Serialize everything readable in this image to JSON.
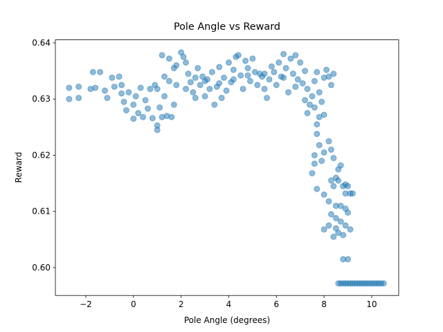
{
  "chart_data": {
    "type": "scatter",
    "title": "Pole Angle vs Reward",
    "x_label": "Pole Angle (degrees)",
    "y_label": "Reward",
    "color": "#1f77b4",
    "alpha": 0.5,
    "grid": false,
    "xlim": [
      -3.278,
      11.133
    ],
    "ylim": [
      0.59505,
      0.64054
    ],
    "xticks": [
      {
        "value": -2,
        "label": "−2"
      },
      0,
      2,
      4,
      6,
      8,
      10
    ],
    "yticks": [
      {
        "value": 0.6,
        "label": "0.60"
      },
      0.61,
      0.62,
      0.63,
      0.64
    ],
    "x": [
      -2.7,
      -2.7,
      -2.3,
      -2.3,
      -1.8,
      -1.7,
      -1.4,
      -1.6,
      -1.2,
      -1.1,
      -0.9,
      -0.8,
      -0.6,
      -0.5,
      -0.5,
      -0.4,
      -0.3,
      -0.2,
      0,
      0,
      0.1,
      0.2,
      0.3,
      0.4,
      0.5,
      0.6,
      0.7,
      0.8,
      0.9,
      1,
      1,
      1.1,
      1.2,
      1.3,
      1.4,
      1.5,
      1.6,
      1.7,
      1.7,
      1.2,
      1.5,
      1.8,
      2.0,
      2.1,
      2.2,
      2.3,
      2.4,
      2.5,
      2.6,
      2.7,
      2.8,
      2.9,
      3.0,
      3.1,
      3.2,
      3.3,
      3.4,
      3.5,
      3.6,
      3.7,
      3.8,
      3.9,
      4.0,
      4.1,
      4.2,
      4.3,
      4.4,
      4.5,
      4.6,
      4.7,
      4.8,
      4.9,
      5.0,
      5.1,
      5.2,
      5.3,
      5.4,
      5.5,
      5.6,
      5.7,
      5.8,
      5.9,
      6.0,
      6.1,
      6.2,
      6.3,
      6.4,
      6.5,
      6.6,
      6.7,
      6.8,
      6.9,
      7.0,
      7.1,
      7.2,
      7.3,
      7.4,
      7.5,
      7.6,
      7.7,
      7.8,
      7.9,
      8.0,
      8.1,
      8.2,
      8.3,
      8.4,
      1.0,
      1.3,
      1.8,
      2.2,
      2.6,
      3.0,
      3.6,
      4.2,
      4.8,
      5.5,
      6.3,
      6.8,
      7.2,
      7.6,
      7.3,
      7.8,
      8.0,
      7.7,
      7.7,
      7.8,
      7.6,
      7.9,
      7.6,
      7.5,
      7.7,
      8.0,
      8.2,
      8.3,
      8.4,
      8.6,
      8.7,
      8.3,
      8.5,
      8.8,
      8.9,
      9.0,
      8.9,
      9.1,
      9.2,
      8.6,
      8.4,
      8.0,
      8.2,
      8.5,
      8.7,
      8.9,
      9.0,
      8.3,
      8.5,
      8.7,
      8.2,
      8.5,
      8.9,
      9.1,
      8.0,
      8.6,
      8.8,
      8.4,
      9.0,
      8.8,
      8.6,
      8.7,
      8.8,
      8.9,
      9.0,
      9.1,
      9.2,
      9.3,
      9.4,
      9.5,
      9.6,
      9.7,
      9.8,
      9.9,
      10.0,
      10.1,
      10.2,
      10.3,
      10.4,
      10.5
    ],
    "y": [
      0.632,
      0.63,
      0.6322,
      0.6302,
      0.6318,
      0.6348,
      0.6348,
      0.632,
      0.6315,
      0.6302,
      0.6338,
      0.6322,
      0.634,
      0.6325,
      0.631,
      0.6295,
      0.628,
      0.6312,
      0.6265,
      0.629,
      0.6305,
      0.6275,
      0.632,
      0.6268,
      0.6298,
      0.6283,
      0.6318,
      0.6266,
      0.6325,
      0.6253,
      0.6245,
      0.6285,
      0.6268,
      0.634,
      0.627,
      0.6332,
      0.6268,
      0.6355,
      0.629,
      0.6378,
      0.6372,
      0.636,
      0.6383,
      0.6375,
      0.6365,
      0.6345,
      0.633,
      0.6312,
      0.6302,
      0.6355,
      0.6325,
      0.634,
      0.6305,
      0.6335,
      0.6318,
      0.6348,
      0.629,
      0.6322,
      0.6357,
      0.6302,
      0.6338,
      0.6315,
      0.6365,
      0.633,
      0.6352,
      0.6375,
      0.6378,
      0.6342,
      0.6318,
      0.6368,
      0.6355,
      0.6332,
      0.6372,
      0.6348,
      0.6325,
      0.6345,
      0.634,
      0.6318,
      0.6302,
      0.6335,
      0.6358,
      0.6348,
      0.6325,
      0.6365,
      0.634,
      0.638,
      0.6355,
      0.6312,
      0.6372,
      0.6345,
      0.6378,
      0.6335,
      0.6365,
      0.6328,
      0.635,
      0.6318,
      0.629,
      0.6305,
      0.6332,
      0.6348,
      0.6312,
      0.6295,
      0.6338,
      0.6352,
      0.634,
      0.6325,
      0.6345,
      0.6318,
      0.6305,
      0.6325,
      0.6318,
      0.6338,
      0.6332,
      0.6328,
      0.6335,
      0.6342,
      0.6345,
      0.6338,
      0.6322,
      0.6298,
      0.6285,
      0.6275,
      0.6268,
      0.6272,
      0.6255,
      0.6238,
      0.6218,
      0.62,
      0.619,
      0.6185,
      0.6168,
      0.614,
      0.6205,
      0.6225,
      0.621,
      0.6195,
      0.6175,
      0.6182,
      0.6155,
      0.616,
      0.6145,
      0.6148,
      0.6145,
      0.6132,
      0.6132,
      0.6132,
      0.6155,
      0.6145,
      0.613,
      0.6118,
      0.611,
      0.611,
      0.6105,
      0.6098,
      0.6095,
      0.6088,
      0.6082,
      0.6075,
      0.607,
      0.6075,
      0.6068,
      0.6068,
      0.6062,
      0.6058,
      0.6055,
      0.6015,
      0.6015,
      0.5972,
      0.5972,
      0.5972,
      0.5972,
      0.5972,
      0.5972,
      0.5972,
      0.5972,
      0.5972,
      0.5972,
      0.5972,
      0.5972,
      0.5972,
      0.5972,
      0.5972,
      0.5972,
      0.5972,
      0.5972,
      0.5972,
      0.5972
    ]
  }
}
